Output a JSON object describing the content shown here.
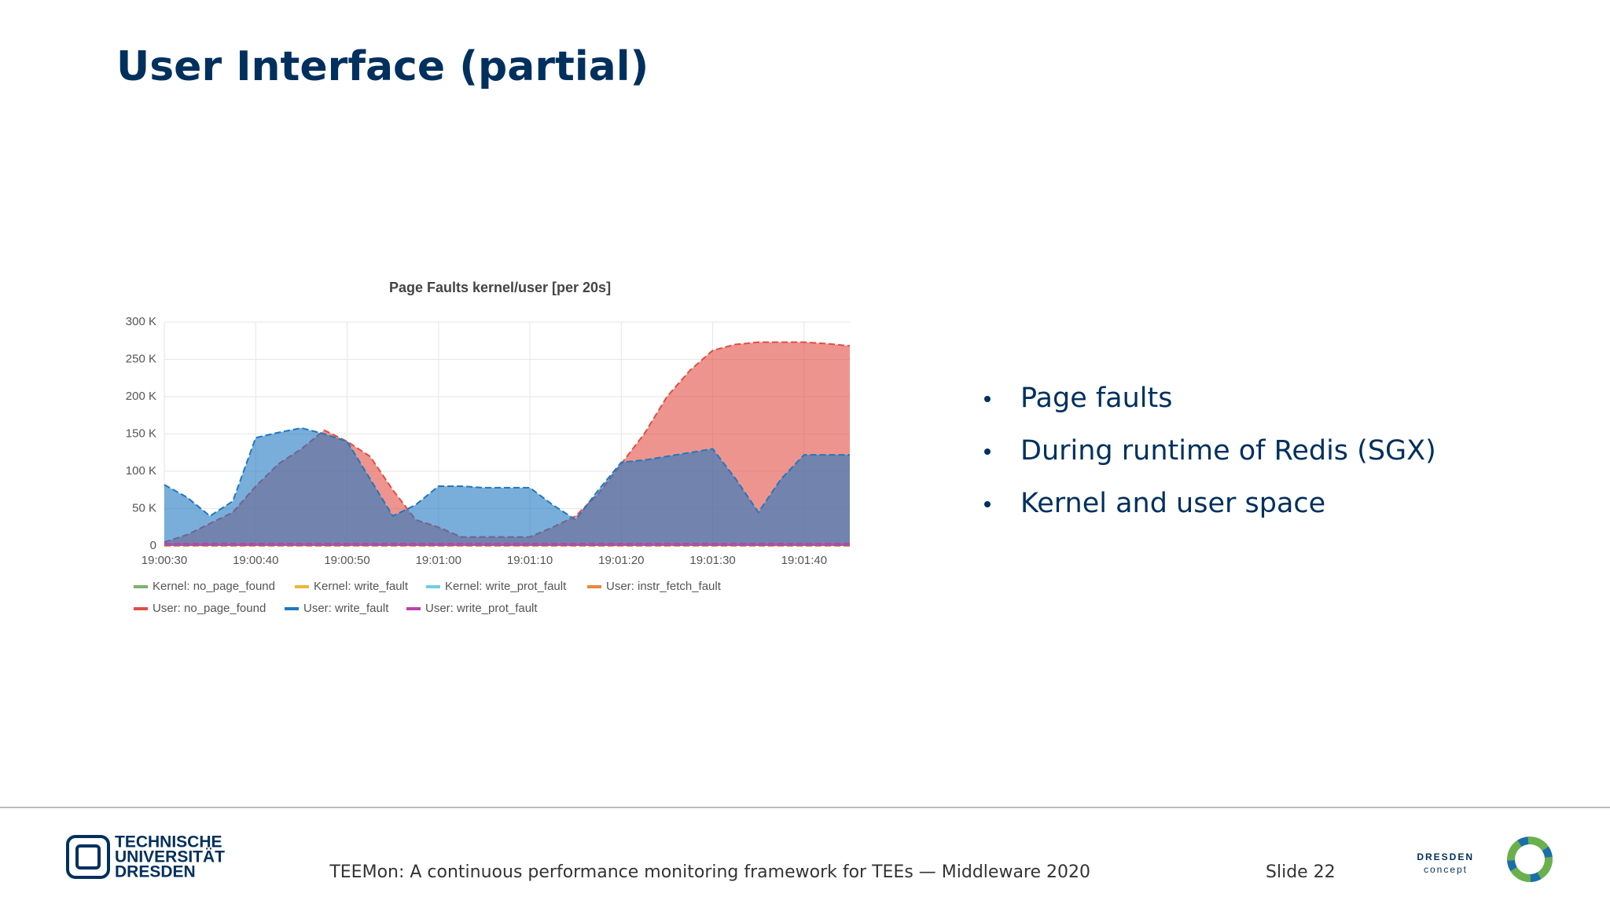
{
  "slide": {
    "title": "User Interface (partial)",
    "bullets": [
      "Page faults",
      "During runtime of Redis (SGX)",
      "Kernel and user space"
    ],
    "footer": {
      "text": "TEEMon: A continuous performance monitoring framework for TEEs  —  Middleware 2020",
      "slide": "Slide 22"
    },
    "logos": {
      "tu": [
        "TECHNISCHE",
        "UNIVERSITÄT",
        "DRESDEN"
      ],
      "concept": [
        "DRESDEN",
        "concept"
      ]
    }
  },
  "chart_data": {
    "type": "area",
    "title": "Page Faults kernel/user [per 20s]",
    "categories": [
      "19:00:30",
      null,
      null,
      null,
      "19:00:40",
      null,
      null,
      null,
      "19:00:50",
      null,
      null,
      null,
      "19:01:00",
      null,
      null,
      null,
      "19:01:10",
      null,
      null,
      null,
      "19:01:20",
      null,
      null,
      null,
      "19:01:30",
      null,
      null,
      null,
      "19:01:40",
      null,
      null
    ],
    "ylim": [
      0,
      300000
    ],
    "yticks": [
      0,
      {
        "value": 50000,
        "label": "50 K"
      },
      {
        "value": 100000,
        "label": "100 K"
      },
      {
        "value": 150000,
        "label": "150 K"
      },
      {
        "value": 200000,
        "label": "200 K"
      },
      {
        "value": 250000,
        "label": "250 K"
      },
      {
        "value": 300000,
        "label": "300 K"
      }
    ],
    "grid": true,
    "series": [
      {
        "name": "Kernel: no_page_found",
        "color": "#7eb26d",
        "values": [
          0,
          0,
          0,
          0,
          0,
          0,
          0,
          0,
          0,
          0,
          0,
          0,
          0,
          0,
          0,
          0,
          0,
          0,
          0,
          0,
          0,
          0,
          0,
          0,
          0,
          0,
          0,
          0,
          0,
          0,
          0
        ]
      },
      {
        "name": "Kernel: write_fault",
        "color": "#eab839",
        "values": [
          0,
          0,
          0,
          0,
          0,
          0,
          0,
          0,
          0,
          0,
          0,
          0,
          0,
          0,
          0,
          0,
          0,
          0,
          0,
          0,
          0,
          0,
          0,
          0,
          0,
          0,
          0,
          0,
          0,
          0,
          0
        ]
      },
      {
        "name": "Kernel: write_prot_fault",
        "color": "#6ed0e0",
        "values": [
          0,
          0,
          0,
          0,
          0,
          0,
          0,
          0,
          0,
          0,
          0,
          0,
          0,
          0,
          0,
          0,
          0,
          0,
          0,
          0,
          0,
          0,
          0,
          0,
          0,
          0,
          0,
          0,
          0,
          0,
          0
        ]
      },
      {
        "name": "User: instr_fetch_fault",
        "color": "#ef843c",
        "values": [
          0,
          0,
          0,
          0,
          0,
          0,
          0,
          0,
          0,
          0,
          0,
          0,
          0,
          0,
          0,
          0,
          0,
          0,
          0,
          0,
          0,
          0,
          0,
          0,
          0,
          0,
          0,
          0,
          0,
          0,
          0
        ]
      },
      {
        "name": "User: no_page_found",
        "color": "#e24d42",
        "values": [
          5000,
          15000,
          30000,
          45000,
          80000,
          110000,
          130000,
          155000,
          140000,
          120000,
          75000,
          35000,
          25000,
          12000,
          12000,
          12000,
          12000,
          25000,
          40000,
          70000,
          110000,
          150000,
          200000,
          235000,
          262000,
          270000,
          273000,
          273000,
          273000,
          271000,
          268000
        ]
      },
      {
        "name": "User: write_fault",
        "color": "#1f78c1",
        "values": [
          82000,
          65000,
          40000,
          60000,
          145000,
          152000,
          158000,
          150000,
          140000,
          90000,
          40000,
          55000,
          80000,
          80000,
          78000,
          78000,
          78000,
          55000,
          35000,
          75000,
          112000,
          115000,
          120000,
          125000,
          130000,
          90000,
          45000,
          90000,
          122000,
          122000,
          122000
        ]
      },
      {
        "name": "User: write_prot_fault",
        "color": "#ba43a9",
        "values": [
          3000,
          3000,
          3000,
          3000,
          3000,
          3000,
          3000,
          3000,
          3000,
          3000,
          3000,
          3000,
          3000,
          3000,
          3000,
          3000,
          3000,
          3000,
          3000,
          3000,
          3000,
          3000,
          3000,
          3000,
          3000,
          3000,
          3000,
          3000,
          3000,
          3000,
          3000
        ]
      }
    ]
  }
}
